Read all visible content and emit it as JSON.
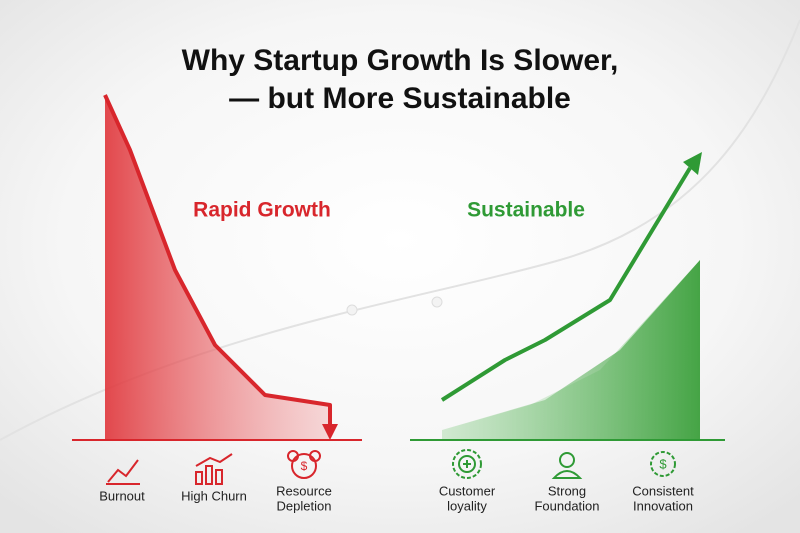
{
  "title": {
    "lines": [
      "Why Startup Growth Is Slower,",
      "— but More Sustainable"
    ]
  },
  "panels": [
    {
      "label": "Rapid Growth",
      "items": [
        {
          "lines": [
            "Burnout"
          ]
        },
        {
          "lines": [
            "High Churn"
          ]
        },
        {
          "lines": [
            "Resource",
            "Depletion"
          ]
        }
      ]
    },
    {
      "label": "Sustainable",
      "items": [
        {
          "lines": [
            "Customer",
            "loyality"
          ]
        },
        {
          "lines": [
            "Strong",
            "Foundation"
          ]
        },
        {
          "lines": [
            "Consistent",
            "Innovation"
          ]
        }
      ]
    }
  ]
}
